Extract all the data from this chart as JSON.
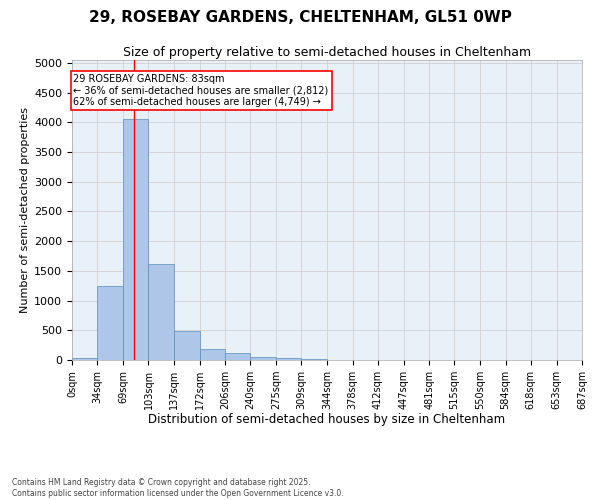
{
  "title1": "29, ROSEBAY GARDENS, CHELTENHAM, GL51 0WP",
  "title2": "Size of property relative to semi-detached houses in Cheltenham",
  "xlabel": "Distribution of semi-detached houses by size in Cheltenham",
  "ylabel": "Number of semi-detached properties",
  "bin_labels": [
    "0sqm",
    "34sqm",
    "69sqm",
    "103sqm",
    "137sqm",
    "172sqm",
    "206sqm",
    "240sqm",
    "275sqm",
    "309sqm",
    "344sqm",
    "378sqm",
    "412sqm",
    "447sqm",
    "481sqm",
    "515sqm",
    "550sqm",
    "584sqm",
    "618sqm",
    "653sqm",
    "687sqm"
  ],
  "bin_edges": [
    0,
    34,
    69,
    103,
    137,
    172,
    206,
    240,
    275,
    309,
    344,
    378,
    412,
    447,
    481,
    515,
    550,
    584,
    618,
    653,
    687
  ],
  "bar_heights": [
    30,
    1250,
    4050,
    1620,
    480,
    190,
    110,
    55,
    35,
    20,
    5,
    2,
    2,
    1,
    0,
    0,
    0,
    0,
    0,
    0
  ],
  "bar_color": "#aec6e8",
  "bar_edgecolor": "#5b8db8",
  "property_line_x": 83,
  "property_label": "29 ROSEBAY GARDENS: 83sqm",
  "pct_smaller": 36,
  "count_smaller": 2812,
  "pct_larger": 62,
  "count_larger": 4749,
  "ylim": [
    0,
    5050
  ],
  "yticks": [
    0,
    500,
    1000,
    1500,
    2000,
    2500,
    3000,
    3500,
    4000,
    4500,
    5000
  ],
  "grid_color": "#cccccc",
  "bg_color": "#e8f0f8",
  "footer1": "Contains HM Land Registry data © Crown copyright and database right 2025.",
  "footer2": "Contains public sector information licensed under the Open Government Licence v3.0.",
  "annotation_fontsize": 7,
  "title1_fontsize": 11,
  "title2_fontsize": 9
}
